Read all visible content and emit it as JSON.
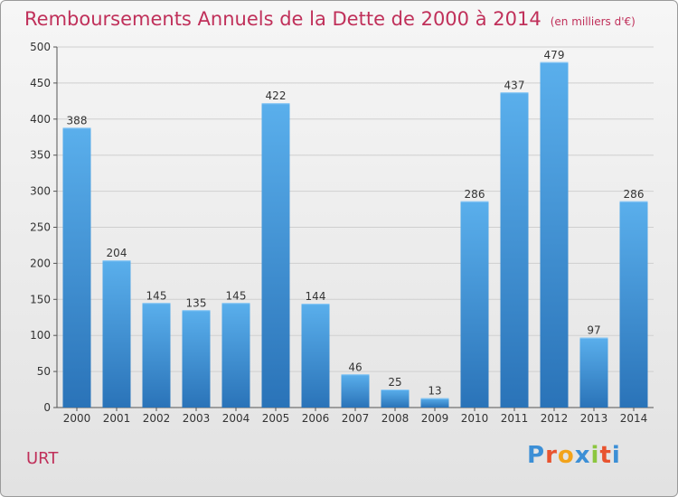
{
  "title": "Remboursements Annuels de la Dette de 2000 à 2014",
  "subtitle": "(en milliers d'€)",
  "location": "URT",
  "brand": {
    "text": "Proxiti",
    "colors": [
      "#3c8fd6",
      "#e8532f",
      "#f2a31b",
      "#3c8fd6",
      "#8cc63f",
      "#e8532f",
      "#3c8fd6"
    ]
  },
  "colors": {
    "title": "#c0305a",
    "bar_light": "#5aafec",
    "bar_dark": "#2a73b8",
    "grid": "#cfcfcf"
  },
  "chart_data": {
    "type": "bar",
    "categories": [
      "2000",
      "2001",
      "2002",
      "2003",
      "2004",
      "2005",
      "2006",
      "2007",
      "2008",
      "2009",
      "2010",
      "2011",
      "2012",
      "2013",
      "2014"
    ],
    "values": [
      388,
      204,
      145,
      135,
      145,
      422,
      144,
      46,
      25,
      13,
      286,
      437,
      479,
      97,
      286
    ],
    "ylim": [
      0,
      500
    ],
    "yticks": [
      0,
      50,
      100,
      150,
      200,
      250,
      300,
      350,
      400,
      450,
      500
    ],
    "grid": true,
    "xlabel": "",
    "ylabel": ""
  }
}
